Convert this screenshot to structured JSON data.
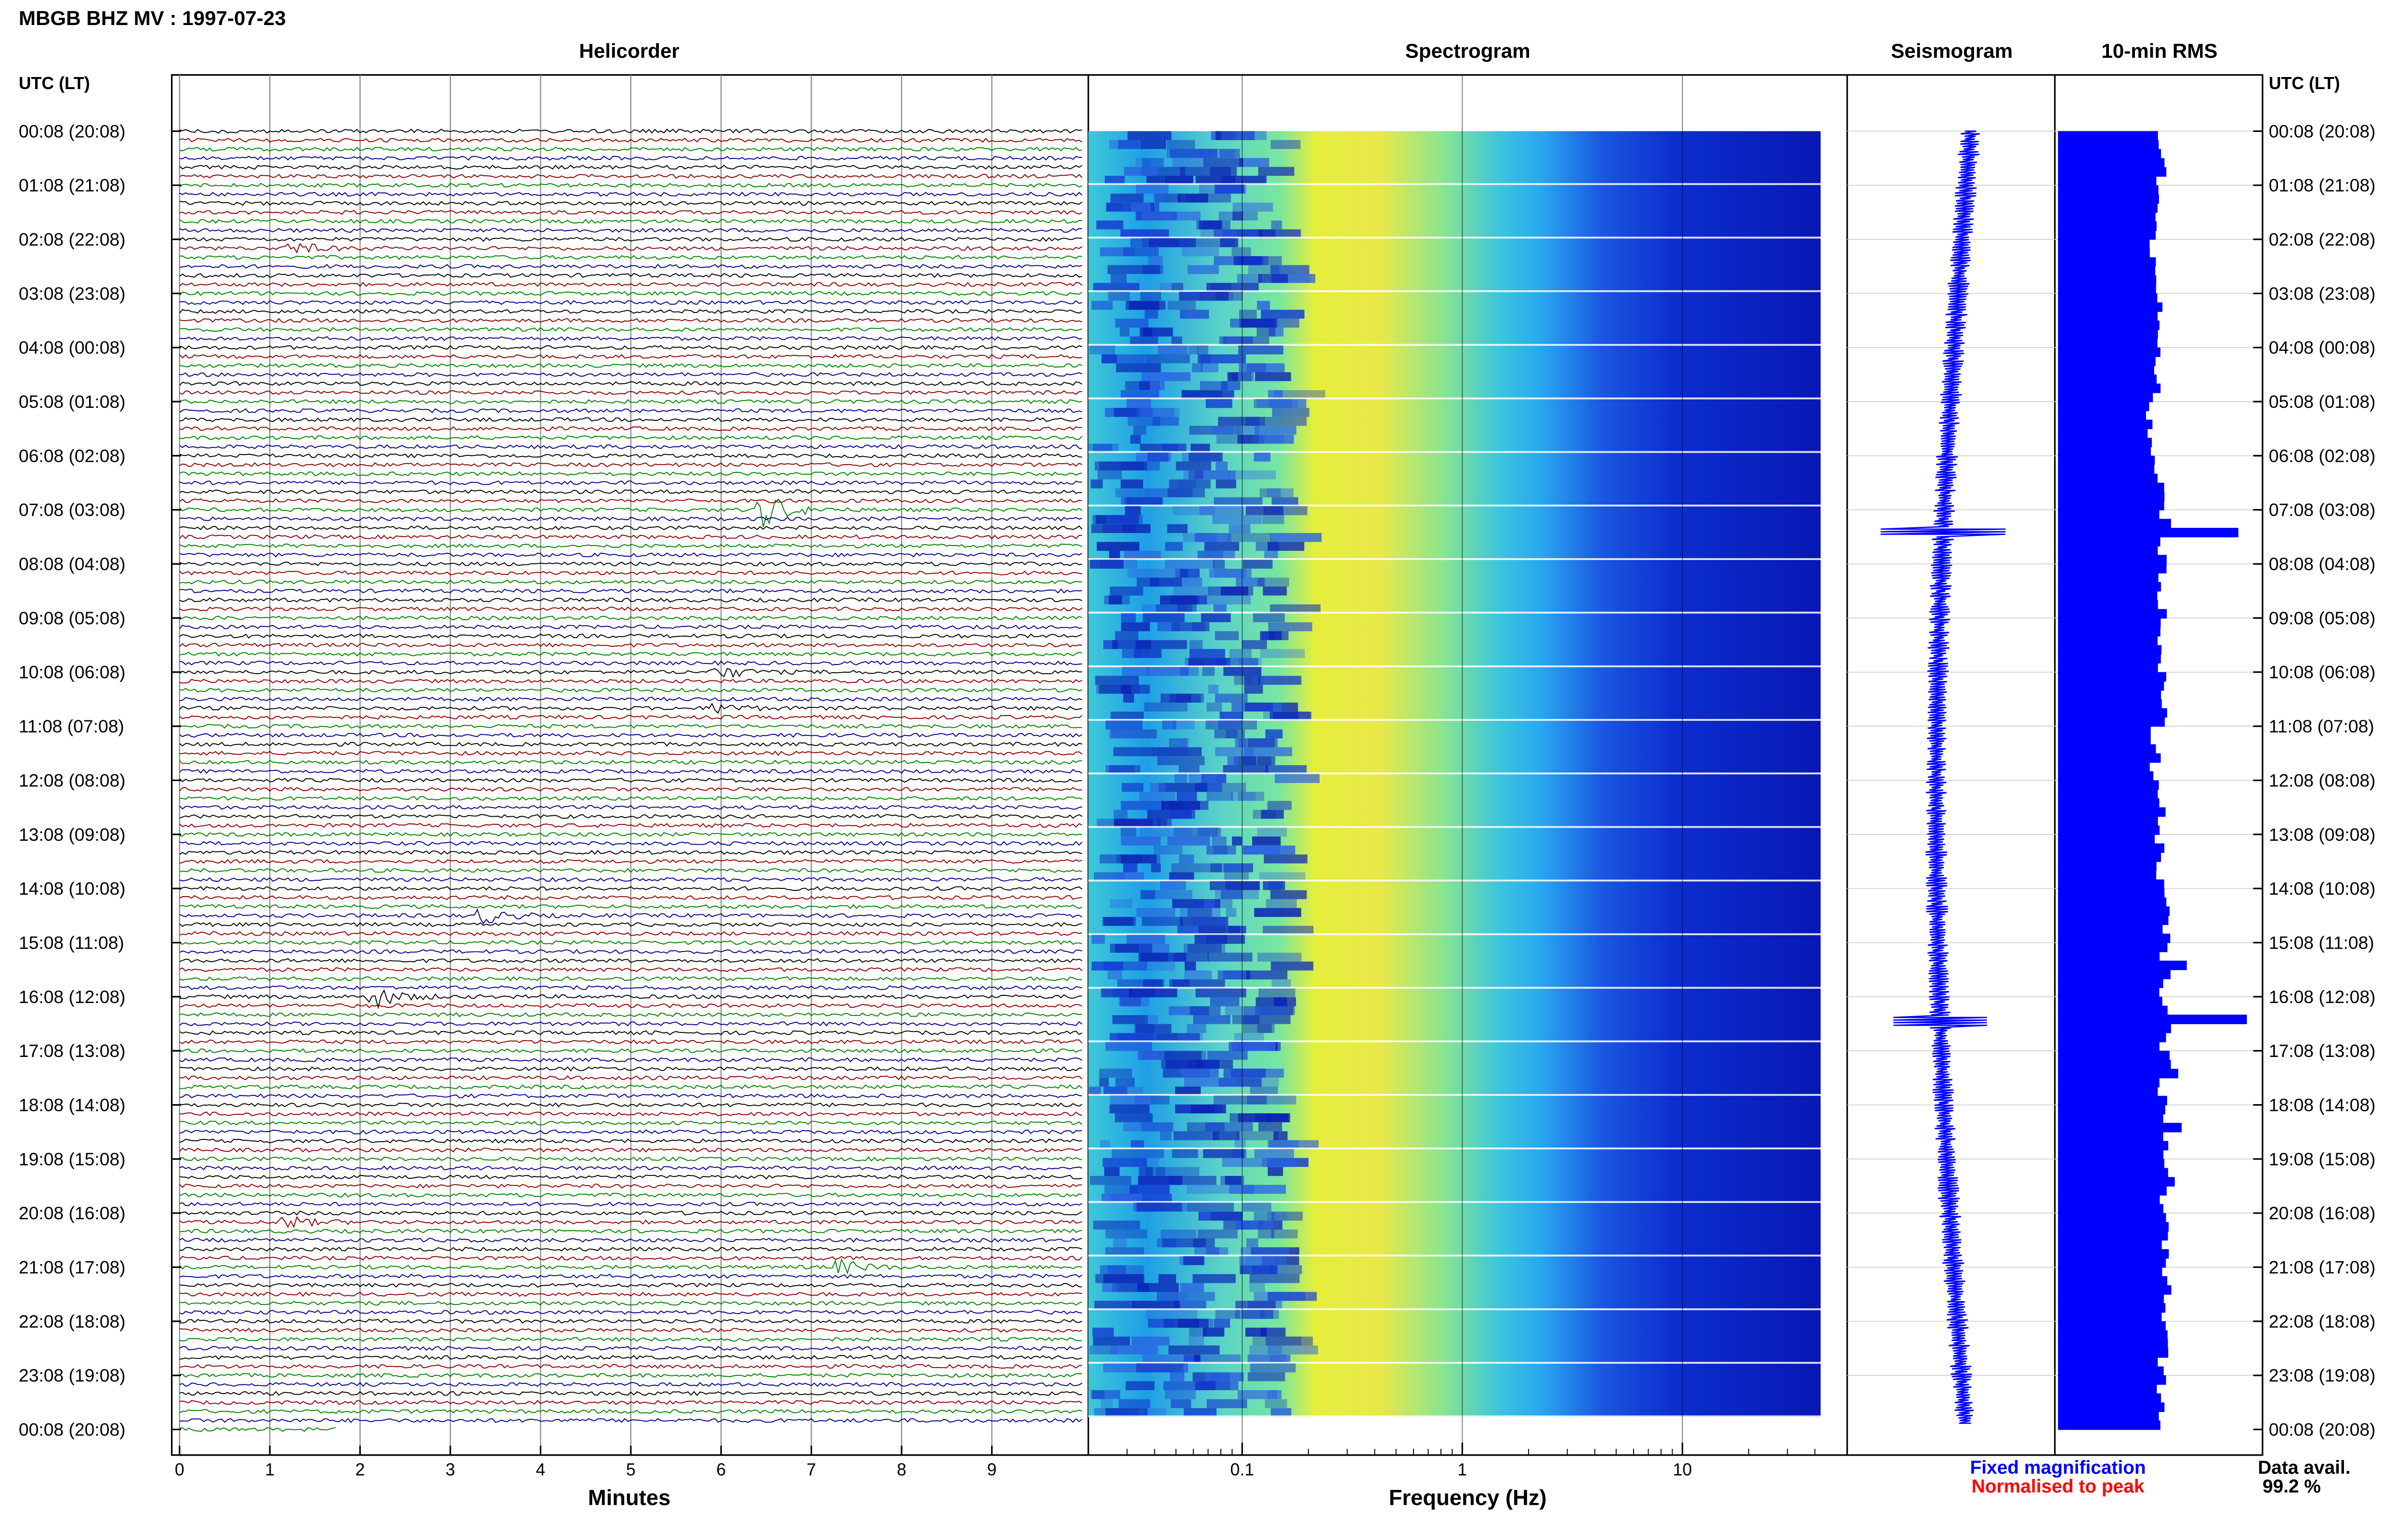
{
  "header": {
    "title": "MBGB BHZ MV : 1997-07-23"
  },
  "panels": {
    "helicorder": "Helicorder",
    "spectrogram": "Spectrogram",
    "seismogram": "Seismogram",
    "rms": "10-min RMS"
  },
  "axis_headers": {
    "left": "UTC (LT)",
    "right": "UTC (LT)"
  },
  "x_labels": {
    "helicorder": "Minutes",
    "spectrogram": "Frequency (Hz)"
  },
  "legend": {
    "fixed": "Fixed magnification",
    "normalised": "Normalised to peak",
    "fixed_color": "#0000ff",
    "normalised_color": "#ff0000"
  },
  "availability": {
    "label": "Data avail.",
    "value": "99.2 %"
  },
  "colors": {
    "trace_cycle": [
      "#000000",
      "#8b0000",
      "#008000",
      "#00008b"
    ],
    "spectrogram_scale": [
      "#0010c0",
      "#1e6ee6",
      "#28b4f0",
      "#6ee6b4",
      "#f0f032"
    ],
    "bar_fill": "#0000ff"
  },
  "chart_data": {
    "type": "heatmap",
    "helicorder": {
      "x_ticks": [
        0,
        1,
        2,
        3,
        4,
        5,
        6,
        7,
        8,
        9
      ],
      "x_range": [
        0,
        10
      ],
      "traces_per_hour": 6,
      "hour_labels": [
        "00:08 (20:08)",
        "01:08 (21:08)",
        "02:08 (22:08)",
        "03:08 (23:08)",
        "04:08 (00:08)",
        "05:08 (01:08)",
        "06:08 (02:08)",
        "07:08 (03:08)",
        "08:08 (04:08)",
        "09:08 (05:08)",
        "10:08 (06:08)",
        "11:08 (07:08)",
        "12:08 (08:08)",
        "13:08 (09:08)",
        "14:08 (10:08)",
        "15:08 (11:08)",
        "16:08 (12:08)",
        "17:08 (13:08)",
        "18:08 (14:08)",
        "19:08 (15:08)",
        "20:08 (16:08)",
        "21:08 (17:08)",
        "22:08 (18:08)",
        "23:08 (19:08)",
        "00:08 (20:08)"
      ],
      "events": [
        {
          "trace": 42,
          "minute": 6.5,
          "amp": 1.4
        },
        {
          "trace": 96,
          "minute": 2.15,
          "amp": 1.0
        },
        {
          "trace": 87,
          "minute": 3.4,
          "amp": 0.6
        },
        {
          "trace": 60,
          "minute": 6.0,
          "amp": 0.5
        },
        {
          "trace": 126,
          "minute": 7.35,
          "amp": 0.55
        },
        {
          "trace": 121,
          "minute": 1.2,
          "amp": 0.5
        },
        {
          "trace": 13,
          "minute": 1.3,
          "amp": 0.45
        },
        {
          "trace": 64,
          "minute": 6.0,
          "amp": 0.4
        }
      ]
    },
    "spectrogram": {
      "x_scale": "log",
      "x_range": [
        0.02,
        50
      ],
      "x_ticks": [
        0.1,
        1,
        10
      ],
      "peak_band_hz": [
        0.2,
        0.6
      ],
      "rows": 144
    },
    "rms": {
      "hourly_values": [
        0.6,
        0.58,
        0.57,
        0.58,
        0.56,
        0.55,
        0.58,
        1.05,
        0.6,
        0.58,
        0.6,
        0.57,
        0.59,
        0.6,
        0.65,
        0.75,
        1.1,
        0.7,
        0.72,
        0.68,
        0.64,
        0.66,
        0.64,
        0.6
      ]
    }
  }
}
